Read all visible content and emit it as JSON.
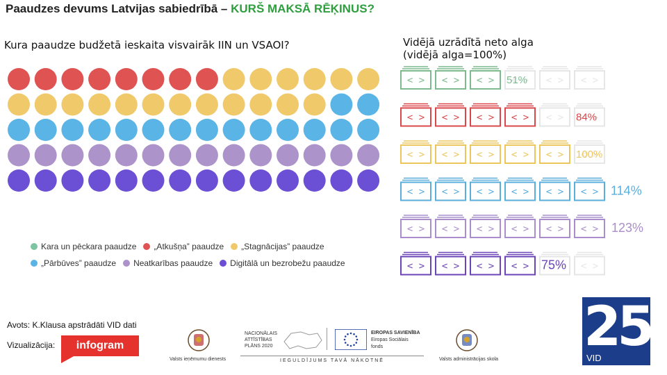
{
  "header": {
    "title_prefix": "Paaudzes devums Latvijas sabiedrībā –",
    "title_accent": "KURŠ MAKSĀ RĒĶINUS?"
  },
  "left_question": "Kura paaudze budžetā ieskaita visvairāk IIN un VSAOI?",
  "right_heading": {
    "line1": "Vidējā uzrādītā neto alga",
    "line2": "(vidējā alga=100%)"
  },
  "chart_data": [
    {
      "type": "waffle",
      "rows": 5,
      "cols": 14,
      "grid": [
        [
          "atkusna",
          "atkusna",
          "atkusna",
          "atkusna",
          "atkusna",
          "atkusna",
          "atkusna",
          "atkusna",
          "stagnacijas",
          "stagnacijas",
          "stagnacijas",
          "stagnacijas",
          "stagnacijas",
          "stagnacijas"
        ],
        [
          "stagnacijas",
          "stagnacijas",
          "stagnacijas",
          "stagnacijas",
          "stagnacijas",
          "stagnacijas",
          "stagnacijas",
          "stagnacijas",
          "stagnacijas",
          "stagnacijas",
          "stagnacijas",
          "stagnacijas",
          "parbuves",
          "parbuves"
        ],
        [
          "parbuves",
          "parbuves",
          "parbuves",
          "parbuves",
          "parbuves",
          "parbuves",
          "parbuves",
          "parbuves",
          "parbuves",
          "parbuves",
          "parbuves",
          "parbuves",
          "parbuves",
          "parbuves"
        ],
        [
          "neatkaribas",
          "neatkaribas",
          "neatkaribas",
          "neatkaribas",
          "neatkaribas",
          "neatkaribas",
          "neatkaribas",
          "neatkaribas",
          "neatkaribas",
          "neatkaribas",
          "neatkaribas",
          "neatkaribas",
          "neatkaribas",
          "neatkaribas"
        ],
        [
          "digitala",
          "digitala",
          "digitala",
          "digitala",
          "digitala",
          "digitala",
          "digitala",
          "digitala",
          "digitala",
          "digitala",
          "digitala",
          "digitala",
          "digitala",
          "digitala"
        ]
      ],
      "legend": [
        {
          "key": "kara",
          "label": "Kara un pēckara paaudze",
          "color": "#7dc4a0"
        },
        {
          "key": "atkusna",
          "label": "„Atkušņa” paaudze",
          "color": "#e05353"
        },
        {
          "key": "stagnacijas",
          "label": "„Stagnācijas” paaudze",
          "color": "#f0c96b"
        },
        {
          "key": "parbuves",
          "label": "„Pārbūves” paaudze",
          "color": "#5ab4e5"
        },
        {
          "key": "neatkaribas",
          "label": "Neatkarības paaudze",
          "color": "#ac93c9"
        },
        {
          "key": "digitala",
          "label": "Digitālā un bezrobežu paaudze",
          "color": "#6b4fd4"
        }
      ]
    },
    {
      "type": "pictogram",
      "unit": "%",
      "rows": [
        {
          "generation": "kara",
          "value": 51,
          "label": "51%",
          "color": "#7dbb8f"
        },
        {
          "generation": "atkusna",
          "value": 84,
          "label": "84%",
          "color": "#d9474b"
        },
        {
          "generation": "stagnacijas",
          "value": 100,
          "label": "100%",
          "color": "#ecc65c"
        },
        {
          "generation": "parbuves",
          "value": 114,
          "label": "114%",
          "color": "#5aaedb"
        },
        {
          "generation": "neatkaribas",
          "value": 123,
          "label": "123%",
          "color": "#a98ecb"
        },
        {
          "generation": "digitala",
          "value": 75,
          "label": "75%",
          "color": "#6b44b8"
        }
      ]
    }
  ],
  "source": "Avots: K.Klausa apstrādāti VID dati",
  "viz_label": "Vizualizācija:",
  "infogram_logo": "infogram",
  "logos": {
    "vid_service": "Valsts ieņēmumu dienests",
    "plan_line1": "NACIONĀLAIS",
    "plan_line2": "ATTĪSTĪBAS",
    "plan_line3": "PLĀNS 2020",
    "eu_line1": "EIROPAS SAVIENĪBA",
    "eu_line2": "Eiropas Sociālais",
    "eu_line3": "fonds",
    "bottom_slogan": "IEGULDĪJUMS TAVĀ NĀKOTNĒ",
    "school": "Valsts administrācijas skola",
    "vid_number": "25",
    "vid_label": "VID"
  }
}
